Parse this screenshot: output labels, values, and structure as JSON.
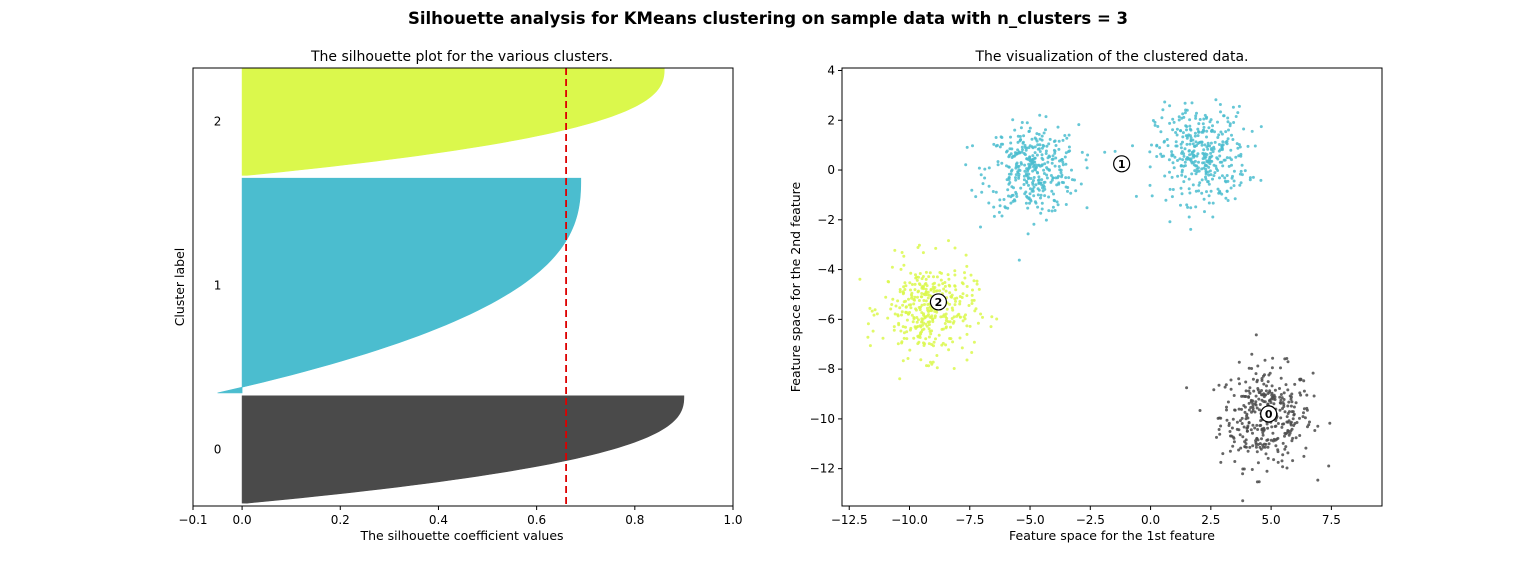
{
  "title": "Silhouette analysis for KMeans clustering on sample data with n_clusters = 3",
  "colors": {
    "cluster_0": "#4a4a4a",
    "cluster_1": "#4bbdcf",
    "cluster_2": "#dbf84c",
    "average_line": "#dd0000"
  },
  "chart_data": [
    {
      "type": "area",
      "title": "The silhouette plot for the various clusters.",
      "xlabel": "The silhouette coefficient values",
      "ylabel": "Cluster label",
      "xlim": [
        -0.1,
        1.0
      ],
      "ylim": [
        0,
        1530
      ],
      "xticks": [
        "−0.1",
        "0.0",
        "0.2",
        "0.4",
        "0.6",
        "0.8",
        "1.0"
      ],
      "average_silhouette": 0.66,
      "clusters": [
        {
          "label": "0",
          "start": 10,
          "size": 375,
          "min": 0.01,
          "max": 0.9
        },
        {
          "label": "1",
          "start": 395,
          "size": 750,
          "min": -0.05,
          "max": 0.69
        },
        {
          "label": "2",
          "start": 1155,
          "size": 375,
          "min": 0.01,
          "max": 0.86
        }
      ]
    },
    {
      "type": "scatter",
      "title": "The visualization of the clustered data.",
      "xlabel": "Feature space for the 1st feature",
      "ylabel": "Feature space for the 2nd feature",
      "xlim": [
        -12.8,
        9.6
      ],
      "ylim": [
        -13.5,
        4.1
      ],
      "xticks": [
        "−12.5",
        "−10.0",
        "−7.5",
        "−5.0",
        "−2.5",
        "0.0",
        "2.5",
        "5.0",
        "7.5"
      ],
      "yticks": [
        "4",
        "2",
        "0",
        "−2",
        "−4",
        "−6",
        "−8",
        "−10",
        "−12"
      ],
      "groups": [
        {
          "cluster": "0",
          "points": 375,
          "blobs": [
            {
              "cx": 4.8,
              "cy": -9.9,
              "sx": 0.95,
              "sy": 1.0
            }
          ]
        },
        {
          "cluster": "1",
          "points": 750,
          "blobs": [
            {
              "cx": -4.9,
              "cy": 0.0,
              "sx": 0.95,
              "sy": 0.9
            },
            {
              "cx": 2.1,
              "cy": 0.6,
              "sx": 0.95,
              "sy": 0.95
            }
          ]
        },
        {
          "cluster": "2",
          "points": 375,
          "blobs": [
            {
              "cx": -9.2,
              "cy": -5.6,
              "sx": 0.95,
              "sy": 0.95
            }
          ]
        }
      ],
      "centers": [
        {
          "label": "0",
          "x": 4.9,
          "y": -9.8
        },
        {
          "label": "1",
          "x": -1.2,
          "y": 0.25
        },
        {
          "label": "2",
          "x": -8.8,
          "y": -5.3
        }
      ]
    }
  ]
}
